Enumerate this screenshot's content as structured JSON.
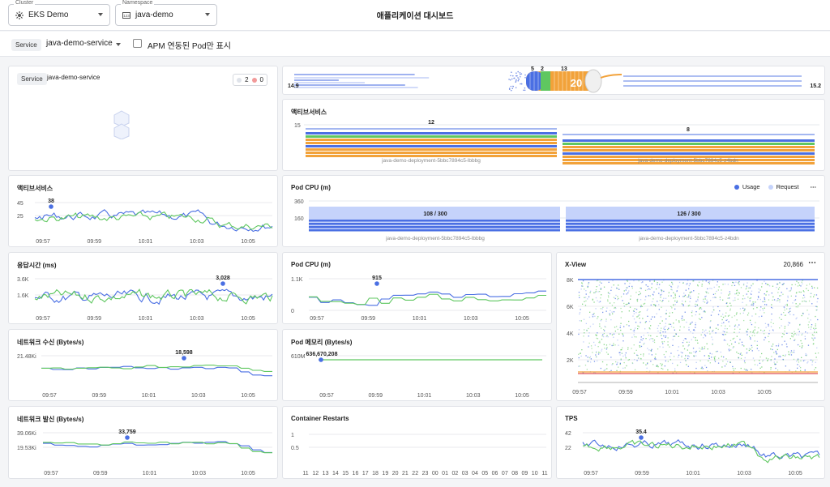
{
  "header": {
    "cluster": {
      "label": "Cluster",
      "value": "EKS Demo"
    },
    "namespace": {
      "label": "Namespace",
      "value": "java-demo"
    },
    "title": "애플리케이션 대시보드"
  },
  "filter": {
    "service_tag": "Service",
    "service_value": "java-demo-service",
    "apm_label": "APM 연동된 Pod만 표시",
    "apm_checked": false
  },
  "service_map": {
    "tag": "Service",
    "name": "java-demo-service",
    "legend_ok": "2",
    "legend_err": "0"
  },
  "flow": {
    "left_value": "14.9",
    "right_value": "15.2",
    "counts": [
      "5",
      "2",
      "13"
    ],
    "center": "20"
  },
  "active_service_bars": {
    "title": "액티브서비스",
    "ytick": "15",
    "pods": [
      {
        "name": "java-demo-deployment-5bbc7894c5-lbbbg",
        "value": "12"
      },
      {
        "name": "java-demo-deployment-5bbc7894c5-z4bdn",
        "value": "8"
      }
    ]
  },
  "pod_cpu_bars": {
    "title": "Pod CPU (m)",
    "legend": [
      "Usage",
      "Request"
    ],
    "yticks": [
      "360",
      "160"
    ],
    "pods": [
      {
        "name": "java-demo-deployment-5bbc7894c5-lbbbg",
        "value": "108 / 300"
      },
      {
        "name": "java-demo-deployment-5bbc7894c5-z4bdn",
        "value": "126 / 300"
      }
    ]
  },
  "colors": {
    "blue": "#4a6fe3",
    "green": "#5fc760",
    "orange": "#f2a23a",
    "red": "#e05252",
    "light_blue": "#c5d3fb"
  },
  "time_ticks": [
    "09:57",
    "09:59",
    "10:01",
    "10:03",
    "10:05"
  ],
  "charts": {
    "active_service": {
      "title": "액티브서비스",
      "yticks": [
        "45",
        "25"
      ],
      "peak": "38"
    },
    "response_time": {
      "title": "응답시간 (ms)",
      "yticks": [
        "3.6K",
        "1.6K"
      ],
      "peak": "3,028"
    },
    "pod_cpu_line": {
      "title": "Pod CPU (m)",
      "yticks": [
        "1.1K",
        "0"
      ],
      "peak": "915"
    },
    "net_in": {
      "title": "네트워크 수신 (Bytes/s)",
      "yticks": [
        "21.48Ki"
      ],
      "peak": "18,598"
    },
    "pod_mem": {
      "title": "Pod 메모리 (Bytes/s)",
      "yticks": [
        "610M"
      ],
      "peak": "636,670,208"
    },
    "net_out": {
      "title": "네트워크 발신 (Bytes/s)",
      "yticks": [
        "39.06Ki",
        "19.53Ki"
      ],
      "peak": "33,759"
    },
    "restarts": {
      "title": "Container Restarts",
      "yticks": [
        "1",
        "0.5"
      ],
      "xticks": [
        "11",
        "12",
        "13",
        "14",
        "15",
        "16",
        "17",
        "18",
        "19",
        "20",
        "21",
        "22",
        "23",
        "00",
        "01",
        "02",
        "03",
        "04",
        "05",
        "06",
        "07",
        "08",
        "09",
        "10",
        "11"
      ]
    },
    "tps": {
      "title": "TPS",
      "yticks": [
        "42",
        "22"
      ],
      "peak": "35.4"
    }
  },
  "xview": {
    "title": "X-View",
    "count": "20,866",
    "yticks": [
      "8K",
      "6K",
      "4K",
      "2K"
    ]
  }
}
